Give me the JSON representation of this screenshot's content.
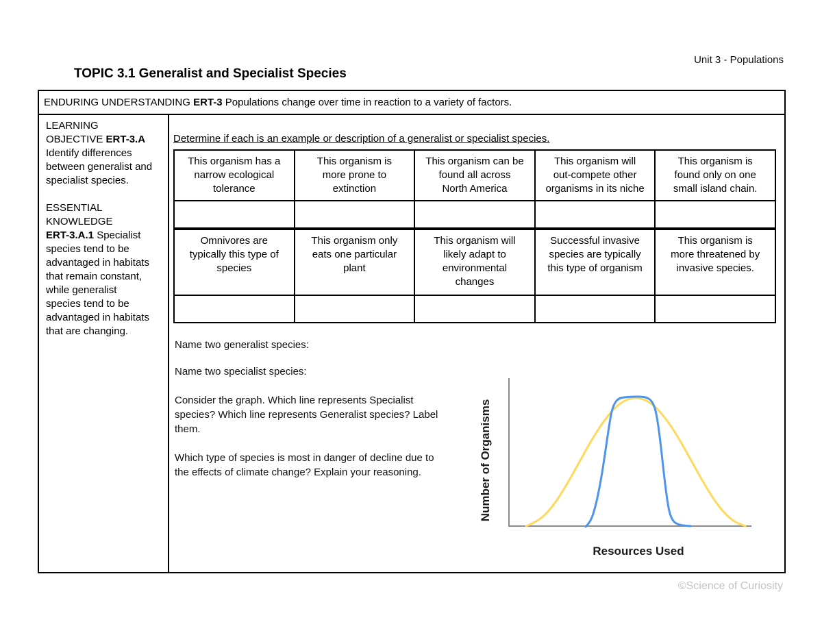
{
  "header": {
    "unit": "Unit 3 - Populations",
    "title": "TOPIC 3.1 Generalist and Specialist Species"
  },
  "enduring_understanding": {
    "label": "ENDURING UNDERSTANDING ",
    "code": "ERT-3",
    "text": " Populations change over time in reaction to a variety of factors."
  },
  "left_panel": {
    "lo_intro": "LEARNING\nOBJECTIVE ",
    "lo_code": "ERT-3.A",
    "lo_text": "\nIdentify differences\nbetween generalist and\nspecialist species.",
    "ek_intro": "ESSENTIAL\nKNOWLEDGE\n",
    "ek_code": "ERT-3.A.1",
    "ek_text": " Specialist\nspecies tend to be\nadvantaged in habitats\nthat remain constant,\nwhile generalist\nspecies tend to be\nadvantaged in habitats\nthat are changing."
  },
  "activity": {
    "instruction": "Determine if each is an example or description of a generalist or specialist species.",
    "prompt_row_1": [
      "This organism has a\nnarrow ecological\ntolerance",
      "This organism is\nmore prone to\nextinction",
      "This organism can be\nfound all across\nNorth America",
      "This organism will\nout-compete other\norganisms in its niche",
      "This organism is\nfound only on one\nsmall island chain."
    ],
    "prompt_row_2": [
      "Omnivores are\ntypically this type of\nspecies",
      "This organism only\neats one particular\nplant",
      "This organism will\nlikely adapt to\nenvironmental\nchanges",
      "Successful invasive\nspecies are typically\nthis type of organism",
      "This organism is\nmore threatened by\ninvasive species."
    ]
  },
  "questions": [
    "Name two generalist species:",
    "Name two specialist species:",
    "Consider the graph. Which line represents Specialist\nspecies? Which line represents Generalist species? Label\nthem.",
    "Which type of species is most in danger of decline due to\nthe effects of climate change? Explain your reasoning."
  ],
  "graph": {
    "y_label": "Number of Organisms",
    "x_label": "Resources Used",
    "axis_color": "#8a8a8a",
    "series": [
      {
        "name": "yellow-wide-curve",
        "color": "#ffd95e",
        "points": [
          [
            70,
            223
          ],
          [
            88,
            216
          ],
          [
            108,
            196
          ],
          [
            128,
            165
          ],
          [
            148,
            129
          ],
          [
            168,
            93
          ],
          [
            188,
            63
          ],
          [
            208,
            42
          ],
          [
            230,
            34
          ],
          [
            252,
            42
          ],
          [
            272,
            63
          ],
          [
            292,
            93
          ],
          [
            312,
            129
          ],
          [
            332,
            165
          ],
          [
            352,
            196
          ],
          [
            372,
            216
          ],
          [
            390,
            223
          ]
        ]
      },
      {
        "name": "blue-narrow-curve",
        "color": "#4e94ea",
        "points": [
          [
            157,
            224
          ],
          [
            163,
            218
          ],
          [
            169,
            203
          ],
          [
            175,
            178
          ],
          [
            181,
            146
          ],
          [
            186,
            112
          ],
          [
            191,
            78
          ],
          [
            195,
            54
          ],
          [
            200,
            42
          ],
          [
            205,
            37
          ],
          [
            212,
            35
          ],
          [
            226,
            34
          ],
          [
            240,
            34
          ],
          [
            248,
            36
          ],
          [
            254,
            41
          ],
          [
            259,
            53
          ],
          [
            263,
            76
          ],
          [
            267,
            108
          ],
          [
            271,
            145
          ],
          [
            275,
            178
          ],
          [
            279,
            203
          ],
          [
            284,
            215
          ],
          [
            290,
            220
          ],
          [
            298,
            222
          ],
          [
            310,
            223
          ]
        ]
      }
    ]
  },
  "footer": {
    "copyright": "©Science of Curiosity"
  }
}
